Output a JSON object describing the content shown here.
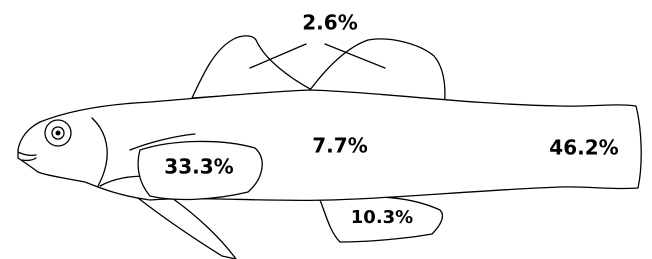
{
  "regions": [
    {
      "label": "2.6%"
    },
    {
      "label": "7.7%"
    },
    {
      "label": "33.3%"
    },
    {
      "label": "46.2%"
    },
    {
      "label": "10.3%"
    }
  ]
}
